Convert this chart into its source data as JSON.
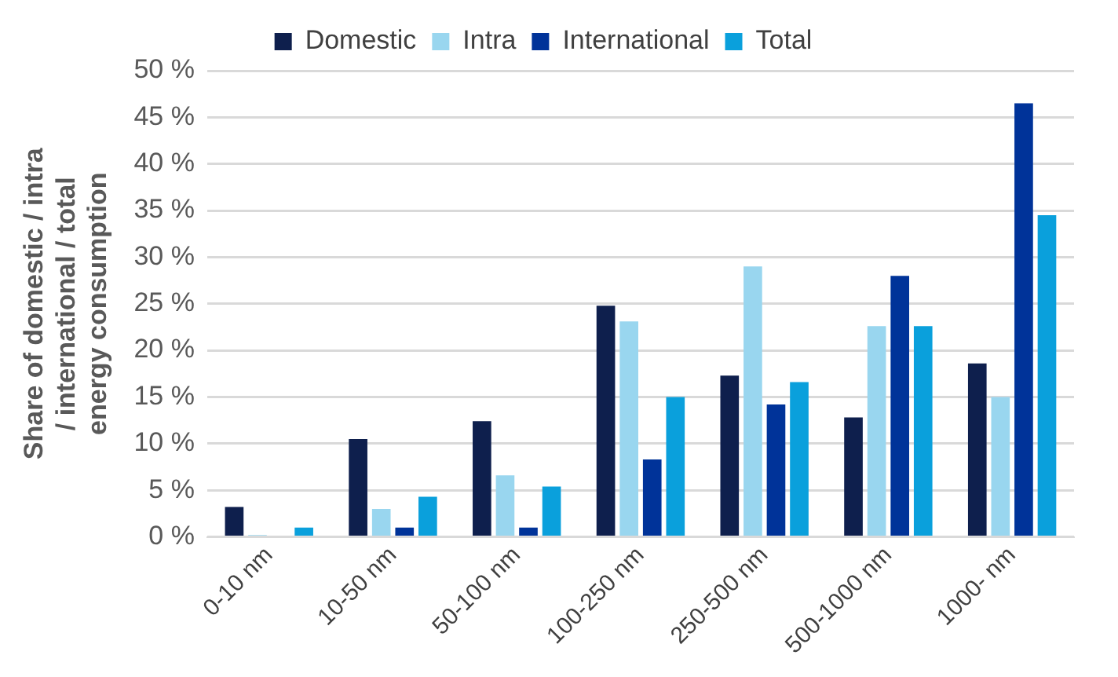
{
  "chart_data": {
    "type": "bar",
    "ylabel": "Share of domestic / intra / international / total energy consumption",
    "categories": [
      "0-10 nm",
      "10-50 nm",
      "50-100 nm",
      "100-250 nm",
      "250-500 nm",
      "500-1000 nm",
      "1000- nm"
    ],
    "series": [
      {
        "name": "Domestic",
        "color": "#0e1f4d",
        "values": [
          3.2,
          10.5,
          12.4,
          24.8,
          17.3,
          12.8,
          18.6
        ]
      },
      {
        "name": "Intra",
        "color": "#99d6ef",
        "values": [
          0.2,
          3.0,
          6.6,
          23.1,
          29.0,
          22.6,
          15.0
        ]
      },
      {
        "name": "International",
        "color": "#003399",
        "values": [
          0,
          1.0,
          1.0,
          8.3,
          14.2,
          28.0,
          46.5
        ]
      },
      {
        "name": "Total",
        "color": "#0aa0dc",
        "values": [
          1.0,
          4.3,
          5.4,
          15.0,
          16.6,
          22.6,
          34.5
        ]
      }
    ],
    "ylim": [
      0,
      50
    ],
    "yticks": [
      {
        "value": 0,
        "label": "0 %"
      },
      {
        "value": 5,
        "label": "5 %"
      },
      {
        "value": 10,
        "label": "10 %"
      },
      {
        "value": 15,
        "label": "15 %"
      },
      {
        "value": 20,
        "label": "20 %"
      },
      {
        "value": 25,
        "label": "25 %"
      },
      {
        "value": 30,
        "label": "30 %"
      },
      {
        "value": 35,
        "label": "35 %"
      },
      {
        "value": 40,
        "label": "40 %"
      },
      {
        "value": 45,
        "label": "45 %"
      },
      {
        "value": 50,
        "label": "50 %"
      }
    ],
    "grid": "y",
    "legend": "top"
  }
}
